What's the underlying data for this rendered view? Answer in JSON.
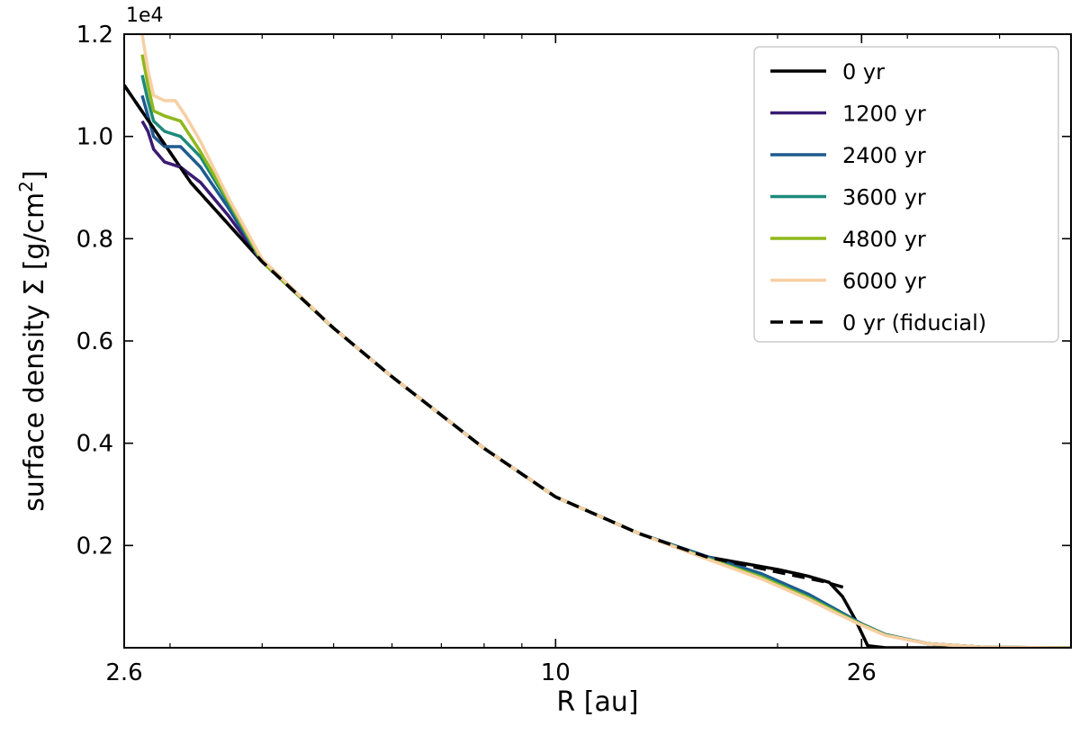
{
  "chart_data": {
    "type": "line",
    "title": "",
    "xlabel": "R [au]",
    "ylabel": "surface density Σ [g/cm²]",
    "ylabel_main": "surface density Σ [g/cm",
    "ylabel_sup": "2",
    "ylabel_end": "]",
    "y_offset_text": "1e4",
    "x_scale": "log",
    "xlim": [
      2.6,
      50
    ],
    "ylim": [
      0,
      12000
    ],
    "x_ticks": [
      2.6,
      10,
      26
    ],
    "x_tick_labels": [
      "2.6",
      "10",
      "26"
    ],
    "y_ticks": [
      2000,
      4000,
      6000,
      8000,
      10000,
      12000
    ],
    "y_tick_labels": [
      "0.2",
      "0.4",
      "0.6",
      "0.8",
      "1.0",
      "1.2"
    ],
    "grid": false,
    "legend_position": "top-right",
    "series": [
      {
        "name": "0 yr",
        "color": "#000000",
        "style": "solid",
        "x": [
          2.6,
          3.2,
          4.0,
          5.0,
          6.0,
          8.0,
          10.0,
          13.0,
          16.0,
          20.0,
          22.0,
          23.5,
          24.5,
          25.5,
          26.5,
          28.0,
          50.0
        ],
        "y": [
          11000,
          9100,
          7550,
          6250,
          5300,
          3900,
          2950,
          2230,
          1780,
          1530,
          1400,
          1280,
          1000,
          550,
          40,
          0,
          0
        ]
      },
      {
        "name": "1200 yr",
        "color": "#3b1b73",
        "style": "solid",
        "x": [
          2.75,
          2.8,
          2.85,
          2.95,
          3.1,
          3.3,
          3.6,
          4.0,
          5.0,
          6.0,
          8.0,
          10.0,
          13.0,
          16.0,
          19.0,
          22.0,
          24.0,
          26.0,
          28.0,
          32.0,
          38.0,
          50.0
        ],
        "y": [
          10300,
          10100,
          9750,
          9500,
          9400,
          9100,
          8450,
          7550,
          6250,
          5300,
          3900,
          2950,
          2230,
          1770,
          1400,
          1000,
          700,
          450,
          250,
          80,
          10,
          0
        ]
      },
      {
        "name": "2400 yr",
        "color": "#1f5a8f",
        "style": "solid",
        "x": [
          2.75,
          2.8,
          2.85,
          2.95,
          3.1,
          3.3,
          3.6,
          4.0,
          5.0,
          6.0,
          8.0,
          10.0,
          13.0,
          16.0,
          19.0,
          22.0,
          24.0,
          26.0,
          28.0,
          32.0,
          38.0,
          50.0
        ],
        "y": [
          10800,
          10400,
          10000,
          9800,
          9800,
          9400,
          8600,
          7550,
          6250,
          5300,
          3900,
          2950,
          2230,
          1790,
          1450,
          1050,
          750,
          470,
          260,
          80,
          10,
          0
        ]
      },
      {
        "name": "3600 yr",
        "color": "#1d8a7a",
        "style": "solid",
        "x": [
          2.75,
          2.8,
          2.85,
          2.95,
          3.1,
          3.3,
          3.6,
          4.0,
          5.0,
          6.0,
          8.0,
          10.0,
          13.0,
          16.0,
          19.0,
          22.0,
          24.0,
          26.0,
          28.0,
          32.0,
          38.0,
          50.0
        ],
        "y": [
          11200,
          10700,
          10300,
          10100,
          10000,
          9600,
          8700,
          7550,
          6250,
          5300,
          3900,
          2950,
          2230,
          1760,
          1400,
          1000,
          720,
          460,
          250,
          80,
          10,
          0
        ]
      },
      {
        "name": "4800 yr",
        "color": "#8fb81c",
        "style": "solid",
        "x": [
          2.75,
          2.8,
          2.85,
          2.95,
          3.1,
          3.3,
          3.6,
          4.0,
          5.0,
          6.0,
          8.0,
          10.0,
          13.0,
          16.0,
          19.0,
          22.0,
          24.0,
          26.0,
          28.0,
          32.0,
          38.0,
          50.0
        ],
        "y": [
          11600,
          11000,
          10500,
          10400,
          10300,
          9700,
          8750,
          7550,
          6250,
          5300,
          3900,
          2950,
          2230,
          1750,
          1380,
          980,
          700,
          450,
          250,
          80,
          10,
          0
        ]
      },
      {
        "name": "6000 yr",
        "color": "#f7cfa3",
        "style": "solid",
        "x": [
          2.75,
          2.8,
          2.85,
          2.95,
          3.05,
          3.15,
          3.3,
          3.6,
          4.0,
          5.0,
          6.0,
          8.0,
          10.0,
          13.0,
          16.0,
          19.0,
          22.0,
          24.0,
          26.0,
          28.0,
          32.0,
          38.0,
          50.0
        ],
        "y": [
          12000,
          11300,
          10800,
          10700,
          10700,
          10400,
          9900,
          8800,
          7600,
          6250,
          5300,
          3900,
          2950,
          2230,
          1740,
          1350,
          950,
          680,
          440,
          240,
          80,
          10,
          0
        ]
      },
      {
        "name": "0 yr (fiducial)",
        "color": "#000000",
        "style": "dashed",
        "x": [
          2.6,
          3.2,
          4.0,
          5.0,
          6.0,
          8.0,
          10.0,
          13.0,
          16.0,
          20.0,
          23.0,
          25.0
        ],
        "y": [
          11000,
          9100,
          7550,
          6250,
          5300,
          3900,
          2950,
          2230,
          1780,
          1480,
          1300,
          1150
        ]
      }
    ]
  }
}
